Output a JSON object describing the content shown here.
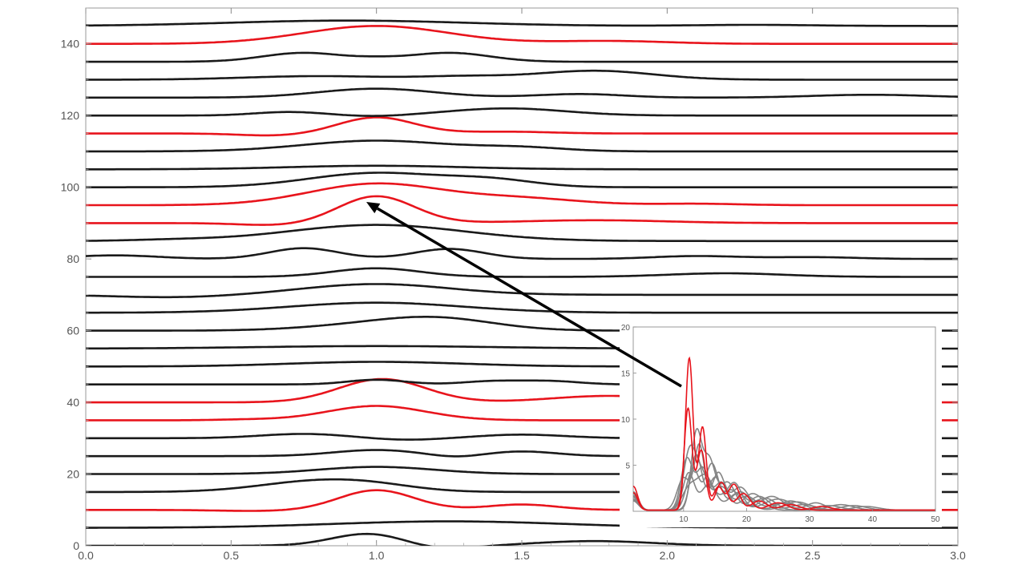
{
  "chart_data": [
    {
      "type": "line",
      "title": "",
      "xlabel": "",
      "ylabel": "",
      "xlim": [
        0,
        3
      ],
      "ylim": [
        0,
        150
      ],
      "x_ticks": [
        "0.0",
        "0.5",
        "1.0",
        "1.5",
        "2.0",
        "2.5",
        "3.0"
      ],
      "y_ticks": [
        "0",
        "20",
        "40",
        "60",
        "80",
        "100",
        "120",
        "140"
      ],
      "grid": false,
      "legend": "none",
      "colors": {
        "normal": "#1a1a1a",
        "highlight": "#e8141c"
      },
      "series": [
        {
          "offset": 0,
          "color": "normal",
          "bumps": [
            [
              0.98,
              3.5,
              0.13
            ],
            [
              1.2,
              -1.2,
              0.12
            ],
            [
              1.75,
              1.3,
              0.2
            ]
          ]
        },
        {
          "offset": 5,
          "color": "normal",
          "bumps": [
            [
              1.25,
              1.8,
              0.4
            ]
          ]
        },
        {
          "offset": 10,
          "color": "highlight",
          "bumps": [
            [
              1.0,
              5.5,
              0.13
            ],
            [
              1.5,
              1.5,
              0.12
            ],
            [
              0.6,
              -0.3,
              0.15
            ]
          ]
        },
        {
          "offset": 15,
          "color": "normal",
          "bumps": [
            [
              0.8,
              3.0,
              0.2
            ],
            [
              1.0,
              1.0,
              0.15
            ]
          ]
        },
        {
          "offset": 20,
          "color": "normal",
          "bumps": [
            [
              1.0,
              2.0,
              0.2
            ]
          ]
        },
        {
          "offset": 25,
          "color": "normal",
          "bumps": [
            [
              1.0,
              1.7,
              0.15
            ],
            [
              1.5,
              1.3,
              0.12
            ],
            [
              1.27,
              -0.6,
              0.08
            ]
          ]
        },
        {
          "offset": 30,
          "color": "normal",
          "bumps": [
            [
              0.75,
              1.2,
              0.15
            ],
            [
              1.5,
              1.0,
              0.15
            ],
            [
              1.1,
              -0.5,
              0.12
            ]
          ]
        },
        {
          "offset": 35,
          "color": "highlight",
          "bumps": [
            [
              1.0,
              4.0,
              0.17
            ],
            [
              0.55,
              0.2,
              0.1
            ]
          ]
        },
        {
          "offset": 40,
          "color": "highlight",
          "bumps": [
            [
              1.02,
              6.5,
              0.15
            ],
            [
              1.8,
              1.8,
              0.2
            ]
          ]
        },
        {
          "offset": 45,
          "color": "normal",
          "bumps": [
            [
              1.0,
              1.3,
              0.1
            ],
            [
              1.4,
              0.9,
              0.1
            ],
            [
              1.6,
              0.9,
              0.1
            ]
          ]
        },
        {
          "offset": 50,
          "color": "normal",
          "bumps": [
            [
              1.0,
              1.3,
              0.3
            ]
          ]
        },
        {
          "offset": 55,
          "color": "normal",
          "bumps": [
            [
              1.0,
              0.7,
              0.4
            ]
          ]
        },
        {
          "offset": 60,
          "color": "normal",
          "bumps": [
            [
              1.2,
              3.5,
              0.2
            ],
            [
              0.9,
              1.0,
              0.2
            ]
          ]
        },
        {
          "offset": 65,
          "color": "normal",
          "bumps": [
            [
              1.0,
              2.8,
              0.3
            ]
          ]
        },
        {
          "offset": 70,
          "color": "normal",
          "bumps": [
            [
              1.0,
              3.0,
              0.25
            ],
            [
              0.3,
              -0.7,
              0.2
            ]
          ]
        },
        {
          "offset": 75,
          "color": "normal",
          "bumps": [
            [
              1.0,
              2.4,
              0.15
            ],
            [
              2.2,
              1.0,
              0.2
            ]
          ]
        },
        {
          "offset": 80,
          "color": "normal",
          "bumps": [
            [
              0.75,
              3.0,
              0.12
            ],
            [
              1.25,
              2.8,
              0.12
            ],
            [
              2.1,
              0.8,
              0.15
            ],
            [
              2.5,
              0.5,
              0.15
            ],
            [
              0.1,
              1.0,
              0.15
            ]
          ]
        },
        {
          "offset": 85,
          "color": "normal",
          "bumps": [
            [
              1.0,
              4.5,
              0.3
            ],
            [
              0.3,
              0.3,
              0.15
            ]
          ]
        },
        {
          "offset": 90,
          "color": "highlight",
          "bumps": [
            [
              1.0,
              7.5,
              0.13
            ],
            [
              0.65,
              -0.6,
              0.12
            ],
            [
              1.75,
              0.8,
              0.25
            ]
          ]
        },
        {
          "offset": 95,
          "color": "highlight",
          "bumps": [
            [
              1.0,
              6.0,
              0.23
            ],
            [
              1.5,
              1.8,
              0.2
            ],
            [
              2.1,
              0.4,
              0.15
            ]
          ]
        },
        {
          "offset": 100,
          "color": "normal",
          "bumps": [
            [
              1.0,
              4.0,
              0.23
            ],
            [
              1.4,
              1.8,
              0.15
            ]
          ]
        },
        {
          "offset": 105,
          "color": "normal",
          "bumps": [
            [
              1.0,
              1.0,
              0.3
            ]
          ]
        },
        {
          "offset": 110,
          "color": "normal",
          "bumps": [
            [
              1.0,
              3.0,
              0.25
            ],
            [
              1.5,
              1.0,
              0.15
            ]
          ]
        },
        {
          "offset": 115,
          "color": "highlight",
          "bumps": [
            [
              1.0,
              4.5,
              0.13
            ],
            [
              0.65,
              -0.6,
              0.12
            ],
            [
              1.45,
              0.5,
              0.15
            ]
          ]
        },
        {
          "offset": 120,
          "color": "normal",
          "bumps": [
            [
              0.7,
              1.0,
              0.12
            ],
            [
              1.45,
              2.0,
              0.2
            ],
            [
              1.0,
              -0.3,
              0.1
            ]
          ]
        },
        {
          "offset": 125,
          "color": "normal",
          "bumps": [
            [
              1.0,
              2.5,
              0.2
            ],
            [
              1.7,
              1.0,
              0.15
            ],
            [
              2.7,
              0.8,
              0.2
            ]
          ]
        },
        {
          "offset": 130,
          "color": "normal",
          "bumps": [
            [
              0.8,
              1.0,
              0.25
            ],
            [
              1.75,
              2.5,
              0.2
            ],
            [
              1.3,
              0.8,
              0.15
            ]
          ]
        },
        {
          "offset": 135,
          "color": "normal",
          "bumps": [
            [
              0.75,
              2.5,
              0.14
            ],
            [
              1.25,
              2.5,
              0.14
            ],
            [
              1.0,
              0.5,
              0.08
            ]
          ]
        },
        {
          "offset": 140,
          "color": "highlight",
          "bumps": [
            [
              1.0,
              5.0,
              0.25
            ],
            [
              1.8,
              0.8,
              0.2
            ]
          ]
        },
        {
          "offset": 145,
          "color": "normal",
          "bumps": [
            [
              0.9,
              1.5,
              0.4
            ],
            [
              2.3,
              0.3,
              0.2
            ]
          ]
        }
      ]
    },
    {
      "type": "line",
      "title": "",
      "xlabel": "",
      "ylabel": "",
      "xlim": [
        2,
        50
      ],
      "ylim": [
        0,
        20
      ],
      "x_ticks": [
        "10",
        "20",
        "30",
        "40",
        "50"
      ],
      "y_ticks": [
        "5",
        "10",
        "15",
        "20"
      ],
      "grid": false,
      "legend": "none",
      "colors": {
        "gray": "#858585",
        "red": "#e8141c"
      },
      "series": [
        {
          "color": "gray",
          "peaks": [
            [
              2,
              2.0,
              0.8
            ],
            [
              11,
              6.5,
              1.0
            ],
            [
              13,
              3.5,
              1.0
            ],
            [
              16,
              2.5,
              1.2
            ],
            [
              20,
              1.5,
              1.5
            ],
            [
              26,
              0.8,
              2.0
            ]
          ]
        },
        {
          "color": "gray",
          "peaks": [
            [
              2,
              1.5,
              0.8
            ],
            [
              12,
              8.0,
              0.8
            ],
            [
              14,
              5.5,
              1.0
            ],
            [
              17,
              3.0,
              1.2
            ],
            [
              22,
              1.5,
              1.5
            ],
            [
              29,
              0.6,
              2.0
            ]
          ]
        },
        {
          "color": "gray",
          "peaks": [
            [
              2,
              1.8,
              0.8
            ],
            [
              10.5,
              5.5,
              0.9
            ],
            [
              13,
              4.5,
              1.0
            ],
            [
              16,
              3.0,
              1.1
            ],
            [
              21,
              1.8,
              1.6
            ],
            [
              33,
              0.5,
              2.0
            ]
          ]
        },
        {
          "color": "gray",
          "peaks": [
            [
              2,
              1.2,
              0.8
            ],
            [
              11.5,
              4.5,
              1.0
            ],
            [
              14.5,
              5.0,
              1.0
            ],
            [
              18,
              3.0,
              1.2
            ],
            [
              24,
              1.5,
              1.8
            ],
            [
              31,
              0.8,
              1.5
            ]
          ]
        },
        {
          "color": "gray",
          "peaks": [
            [
              2,
              1.6,
              0.8
            ],
            [
              10,
              3.5,
              1.0
            ],
            [
              12.5,
              7.0,
              0.8
            ],
            [
              15.5,
              4.0,
              1.0
            ],
            [
              19,
              2.5,
              1.4
            ],
            [
              27,
              1.0,
              2.0
            ]
          ]
        },
        {
          "color": "gray",
          "peaks": [
            [
              2,
              1.0,
              0.8
            ],
            [
              11,
              2.5,
              1.2
            ],
            [
              13.5,
              3.5,
              1.2
            ],
            [
              17.5,
              2.2,
              1.5
            ],
            [
              25,
              1.2,
              2.2
            ],
            [
              37,
              0.5,
              2.0
            ]
          ]
        },
        {
          "color": "gray",
          "peaks": [
            [
              2,
              1.4,
              0.8
            ],
            [
              12,
              6.0,
              0.9
            ],
            [
              15,
              3.5,
              1.0
            ],
            [
              19,
              2.0,
              1.5
            ],
            [
              28,
              0.9,
              2.0
            ],
            [
              39,
              0.4,
              2.0
            ]
          ]
        },
        {
          "color": "gray",
          "peaks": [
            [
              2,
              1.1,
              0.8
            ],
            [
              10.8,
              4.0,
              0.9
            ],
            [
              14,
              2.8,
              1.2
            ],
            [
              18.5,
              1.8,
              1.4
            ],
            [
              23,
              1.3,
              1.6
            ],
            [
              35,
              0.6,
              2.0
            ]
          ]
        },
        {
          "color": "red",
          "peaks": [
            [
              2,
              2.6,
              0.7
            ],
            [
              10.9,
              16.5,
              0.6
            ],
            [
              13,
              9.0,
              0.6
            ],
            [
              15.5,
              2.5,
              0.8
            ],
            [
              18,
              2.8,
              0.9
            ],
            [
              22,
              1.0,
              1.2
            ],
            [
              27,
              0.6,
              1.5
            ]
          ]
        },
        {
          "color": "red",
          "peaks": [
            [
              2,
              1.9,
              0.7
            ],
            [
              10.7,
              11.0,
              0.6
            ],
            [
              12.8,
              6.5,
              0.7
            ],
            [
              16,
              3.0,
              0.9
            ],
            [
              19.5,
              1.8,
              1.1
            ],
            [
              25,
              0.8,
              1.5
            ],
            [
              32,
              0.4,
              1.5
            ]
          ]
        }
      ]
    }
  ]
}
